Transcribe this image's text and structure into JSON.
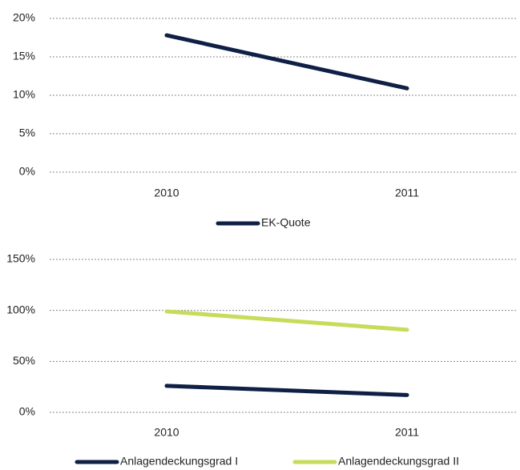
{
  "chart_data": [
    {
      "type": "line",
      "categories": [
        "2010",
        "2011"
      ],
      "series": [
        {
          "name": "EK-Quote",
          "color": "#0f1f45",
          "values": [
            17.8,
            10.9
          ]
        }
      ],
      "ylim": [
        0,
        20
      ],
      "yticks": [
        {
          "value": 0,
          "label": "0%"
        },
        {
          "value": 5,
          "label": "5%"
        },
        {
          "value": 10,
          "label": "10%"
        },
        {
          "value": 15,
          "label": "15%"
        },
        {
          "value": 20,
          "label": "20%"
        }
      ],
      "grid": true,
      "legend": "bottom"
    },
    {
      "type": "line",
      "categories": [
        "2010",
        "2011"
      ],
      "series": [
        {
          "name": "Anlagendeckungsgrad I",
          "color": "#0f1f45",
          "values": [
            26,
            17
          ]
        },
        {
          "name": "Anlagendeckungsgrad II",
          "color": "#c6dc5a",
          "values": [
            99,
            81
          ]
        }
      ],
      "ylim": [
        0,
        150
      ],
      "yticks": [
        {
          "value": 0,
          "label": "0%"
        },
        {
          "value": 50,
          "label": "50%"
        },
        {
          "value": 100,
          "label": "100%"
        },
        {
          "value": 150,
          "label": "150%"
        }
      ],
      "grid": true,
      "legend": "bottom"
    }
  ]
}
